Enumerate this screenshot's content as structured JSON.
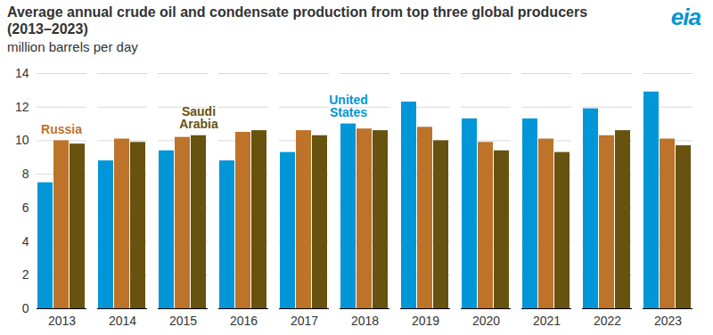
{
  "chart_data": {
    "type": "bar",
    "title": "Average annual crude oil and condensate production from top three global producers (2013–2023)",
    "subtitle": "million barrels per day",
    "logo_text": "eia",
    "categories": [
      "2013",
      "2014",
      "2015",
      "2016",
      "2017",
      "2018",
      "2019",
      "2020",
      "2021",
      "2022",
      "2023"
    ],
    "series": [
      {
        "name": "United States",
        "color": "#0096d7",
        "values": [
          7.5,
          8.8,
          9.4,
          8.8,
          9.3,
          11.0,
          12.3,
          11.3,
          11.3,
          11.9,
          12.9
        ]
      },
      {
        "name": "Russia",
        "color": "#bd732a",
        "values": [
          10.0,
          10.1,
          10.2,
          10.5,
          10.6,
          10.7,
          10.8,
          9.9,
          10.1,
          10.3,
          10.1
        ]
      },
      {
        "name": "Saudi Arabia",
        "color": "#67520f",
        "values": [
          9.8,
          9.9,
          10.3,
          10.6,
          10.3,
          10.6,
          10.0,
          9.4,
          9.3,
          10.6,
          9.7
        ]
      }
    ],
    "ylim": [
      0,
      14
    ],
    "yticks": [
      0,
      2,
      4,
      6,
      8,
      10,
      12,
      14
    ],
    "grid": true
  }
}
